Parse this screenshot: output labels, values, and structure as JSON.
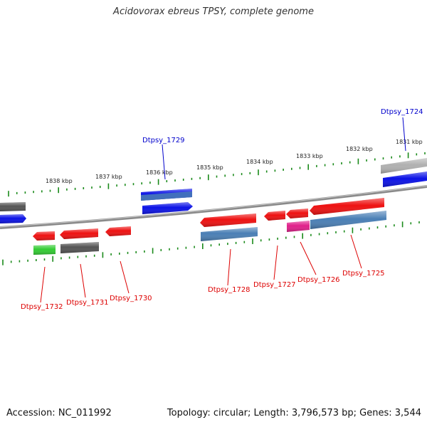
{
  "title": "Acidovorax ebreus TPSY, complete genome",
  "footer": {
    "accession": "Accession: NC_011992",
    "summary": "Topology: circular; Length: 3,796,573 bp; Genes: 3,544"
  },
  "colors": {
    "backbone": "#888888",
    "tick": "#1a8a1a",
    "label_forward": "#0000cc",
    "label_reverse": "#dd0000",
    "red": "#ee1111",
    "blue": "#0b12e6",
    "steelblue": "#4a7fb5",
    "gray": "#555555",
    "lightgray": "#b0b0b0",
    "green": "#33cc33",
    "magenta": "#e0208a"
  },
  "scale_labels": [
    "1838 kbp",
    "1837 kbp",
    "1836 kbp",
    "1835 kbp",
    "1834 kbp",
    "1833 kbp",
    "1832 kbp",
    "1831 kbp"
  ],
  "gene_labels": [
    "Dtpsy_1724",
    "Dtpsy_1729",
    "Dtpsy_1732",
    "Dtpsy_1731",
    "Dtpsy_1730",
    "Dtpsy_1728",
    "Dtpsy_1727",
    "Dtpsy_1726",
    "Dtpsy_1725"
  ]
}
